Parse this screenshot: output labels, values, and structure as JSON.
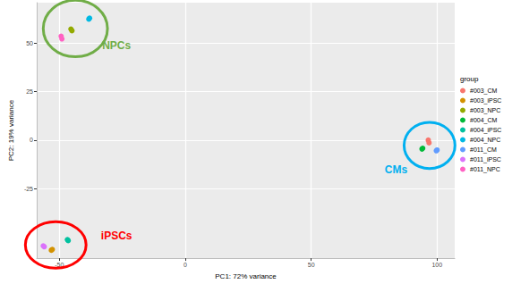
{
  "chart_data": {
    "type": "scatter",
    "x_label": "PC1: 72% variance",
    "y_label": "PC2: 19% variance",
    "xlim": [
      -59,
      107
    ],
    "ylim": [
      -61,
      71
    ],
    "xticks": [
      -50,
      0,
      50,
      100
    ],
    "yticks": [
      -25,
      0,
      25,
      50
    ],
    "grid": true,
    "legend": "right",
    "legend_title": "group",
    "marker": "circle",
    "series": [
      {
        "name": "#003_CM",
        "color": "#F8766D",
        "values": [
          [
            96.8,
            -1.4
          ],
          [
            96.5,
            0.0
          ]
        ]
      },
      {
        "name": "#003_iPSC",
        "color": "#D39200",
        "values": [
          [
            -52.8,
            -56.5
          ],
          [
            -53.2,
            -56.9
          ]
        ]
      },
      {
        "name": "#003_NPC",
        "color": "#93AA00",
        "values": [
          [
            -45.4,
            57.4
          ],
          [
            -45.0,
            56.5
          ]
        ]
      },
      {
        "name": "#004_CM",
        "color": "#00BA38",
        "values": [
          [
            94.3,
            -4.2
          ],
          [
            94.0,
            -4.6
          ]
        ]
      },
      {
        "name": "#004_iPSC",
        "color": "#00C19F",
        "values": [
          [
            -46.8,
            -51.4
          ],
          [
            -46.5,
            -51.9
          ]
        ]
      },
      {
        "name": "#004_NPC",
        "color": "#00B9E3",
        "values": [
          [
            -38.3,
            62.5
          ],
          [
            -38.0,
            63.0
          ]
        ]
      },
      {
        "name": "#011_CM",
        "color": "#619CFF",
        "values": [
          [
            100.0,
            -5.1
          ],
          [
            99.7,
            -5.5
          ]
        ]
      },
      {
        "name": "#011_iPSC",
        "color": "#DB72FB",
        "values": [
          [
            -56.4,
            -54.6
          ],
          [
            -56.0,
            -55.1
          ]
        ]
      },
      {
        "name": "#011_NPC",
        "color": "#FF61C3",
        "values": [
          [
            -49.3,
            53.7
          ],
          [
            -49.0,
            52.3
          ]
        ]
      }
    ],
    "annotations": [
      {
        "text": "NPCs",
        "x": -27.3,
        "y": 49,
        "color": "#70AD47",
        "encloses": [
          "#003_NPC",
          "#004_NPC",
          "#011_NPC"
        ]
      },
      {
        "text": "CMs",
        "x": 83.7,
        "y": -15.3,
        "color": "#00B0F0",
        "encloses": [
          "#003_CM",
          "#004_CM",
          "#011_CM"
        ]
      },
      {
        "text": "iPSCs",
        "x": -27.3,
        "y": -49.5,
        "color": "#FF0000",
        "encloses": [
          "#003_iPSC",
          "#004_iPSC",
          "#011_iPSC"
        ]
      }
    ]
  }
}
